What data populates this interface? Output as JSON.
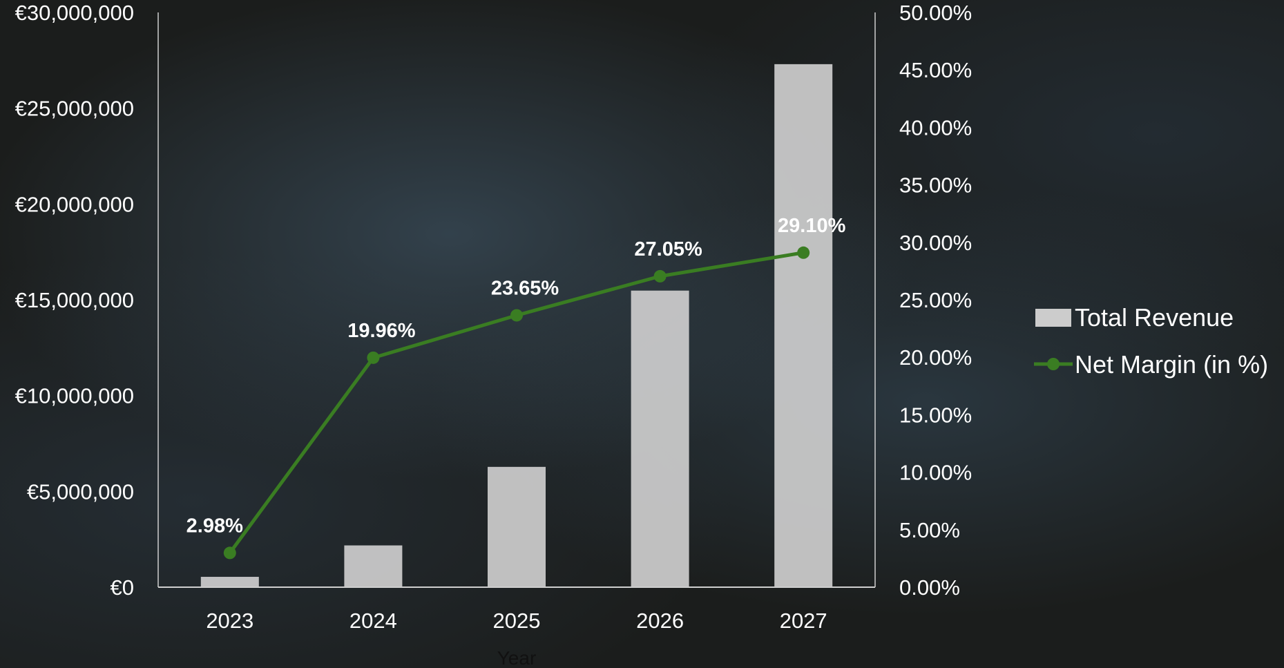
{
  "chart_data": {
    "type": "bar",
    "categories": [
      "2023",
      "2024",
      "2025",
      "2026",
      "2027"
    ],
    "series": [
      {
        "name": "Total Revenue",
        "type": "bar",
        "axis": "left",
        "values": [
          540000,
          2180000,
          6280000,
          15480000,
          27300000
        ],
        "color": "#cccccc"
      },
      {
        "name": "Net Margin (in %)",
        "type": "line",
        "axis": "right",
        "values": [
          2.98,
          19.96,
          23.65,
          27.05,
          29.1
        ],
        "labels": [
          "2.98%",
          "19.96%",
          "23.65%",
          "27.05%",
          "29.10%"
        ],
        "color": "#3a7d22"
      }
    ],
    "xlabel": "Year",
    "y_left": {
      "lim": [
        0,
        30000000
      ],
      "ticks": [
        "€0",
        "€5,000,000",
        "€10,000,000",
        "€15,000,000",
        "€20,000,000",
        "€25,000,000",
        "€30,000,000"
      ]
    },
    "y_right": {
      "lim": [
        0,
        50
      ],
      "ticks": [
        "0.00%",
        "5.00%",
        "10.00%",
        "15.00%",
        "20.00%",
        "25.00%",
        "30.00%",
        "35.00%",
        "40.00%",
        "45.00%",
        "50.00%"
      ]
    },
    "legend": {
      "position": "right",
      "entries": [
        "Total Revenue",
        "Net Margin (in %)"
      ]
    },
    "grid": false
  }
}
